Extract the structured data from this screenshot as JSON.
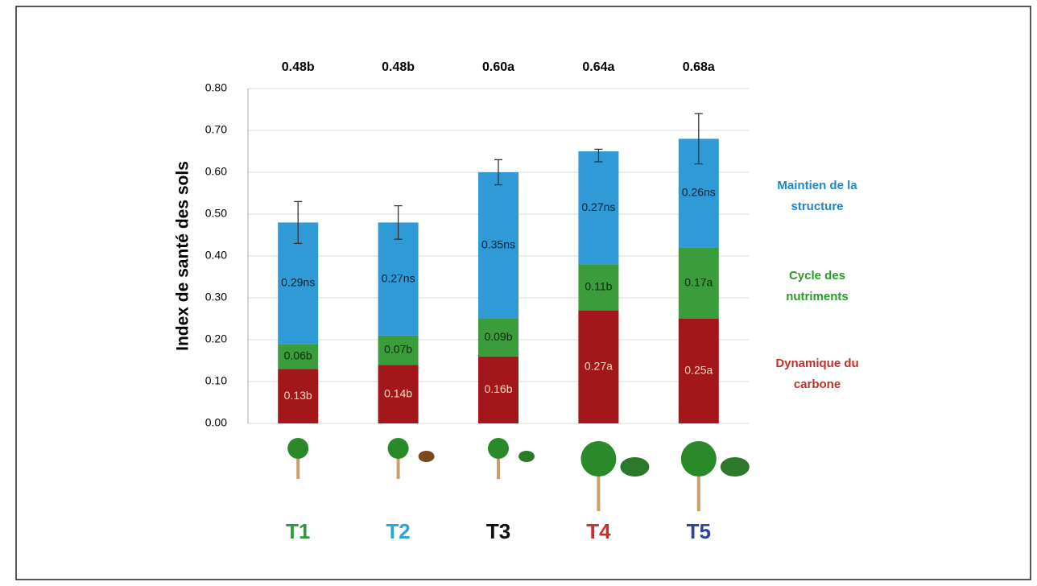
{
  "chart_data": {
    "type": "stacked_bar",
    "y_label": "Index de santé des sols",
    "categories": [
      "T1",
      "T2",
      "T3",
      "T4",
      "T5"
    ],
    "category_colors": [
      "#2a9a3a",
      "#2aa3d8",
      "#111111",
      "#d02a2a",
      "#3040a0"
    ],
    "series": [
      {
        "name": "Dynamique du carbone",
        "color": "#a3161a",
        "label_color": "#f5dcc0",
        "legend_color": "#c0302a",
        "values": [
          0.13,
          0.14,
          0.16,
          0.27,
          0.25
        ],
        "value_labels": [
          "0.13b",
          "0.14b",
          "0.16b",
          "0.27a",
          "0.25a"
        ]
      },
      {
        "name": "Cycle des nutriments",
        "color": "#3b9c3b",
        "label_color": "#0d2a0d",
        "legend_color": "#2a9a2a",
        "values": [
          0.06,
          0.07,
          0.09,
          0.11,
          0.17
        ],
        "value_labels": [
          "0.06b",
          "0.07b",
          "0.09b",
          "0.11b",
          "0.17a"
        ]
      },
      {
        "name": "Maintien de la structure",
        "color": "#2f9ad6",
        "label_color": "#0d2233",
        "legend_color": "#1f86c8",
        "values": [
          0.29,
          0.27,
          0.35,
          0.27,
          0.26
        ],
        "value_labels": [
          "0.29ns",
          "0.27ns",
          "0.35ns",
          "0.27ns",
          "0.26ns"
        ]
      }
    ],
    "totals": {
      "values": [
        0.48,
        0.48,
        0.6,
        0.64,
        0.68
      ],
      "value_labels": [
        "0.48b",
        "0.48b",
        "0.60a",
        "0.64a",
        "0.68a"
      ]
    },
    "errors": [
      0.05,
      0.04,
      0.03,
      0.015,
      0.06
    ],
    "ylim": [
      0,
      0.8
    ],
    "yticks": [
      {
        "value": 0,
        "label": "0.00"
      },
      {
        "value": 0.1,
        "label": "0.10"
      },
      {
        "value": 0.2,
        "label": "0.20"
      },
      {
        "value": 0.3,
        "label": "0.30"
      },
      {
        "value": 0.4,
        "label": "0.40"
      },
      {
        "value": 0.5,
        "label": "0.50"
      },
      {
        "value": 0.6,
        "label": "0.60"
      },
      {
        "value": 0.7,
        "label": "0.70"
      },
      {
        "value": 0.8,
        "label": "0.80"
      }
    ],
    "grid": true
  }
}
